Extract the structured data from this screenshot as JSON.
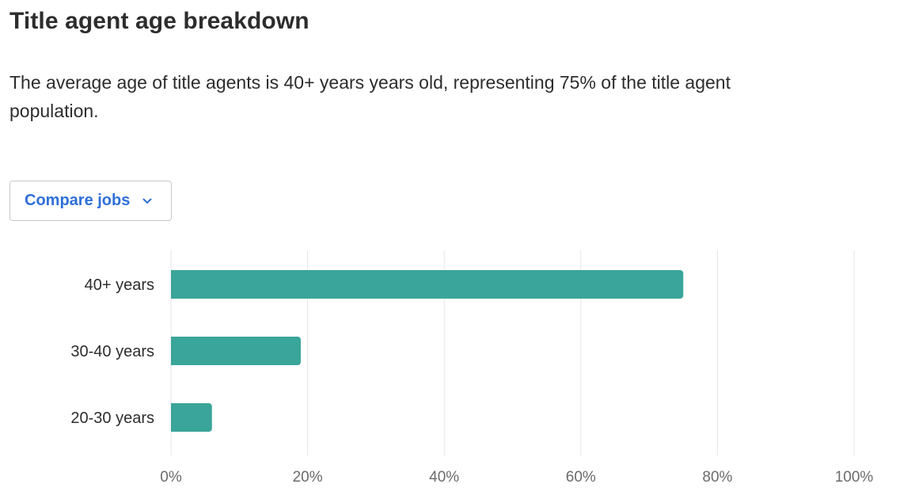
{
  "header": {
    "title": "Title agent age breakdown",
    "description": "The average age of title agents is 40+ years years old, representing 75% of the title agent population."
  },
  "controls": {
    "compare_label": "Compare jobs",
    "compare_icon": "chevron-down-icon"
  },
  "colors": {
    "bar": "#3aa59a",
    "grid": "#e6e6e6",
    "accent": "#2f6fd8"
  },
  "chart_data": {
    "type": "bar",
    "orientation": "horizontal",
    "categories": [
      "40+ years",
      "30-40 years",
      "20-30 years"
    ],
    "values": [
      75,
      19,
      6
    ],
    "xlim": [
      0,
      100
    ],
    "x_ticks": [
      "0%",
      "20%",
      "40%",
      "60%",
      "80%",
      "100%"
    ],
    "grid": true,
    "title": "",
    "xlabel": "",
    "ylabel": ""
  }
}
